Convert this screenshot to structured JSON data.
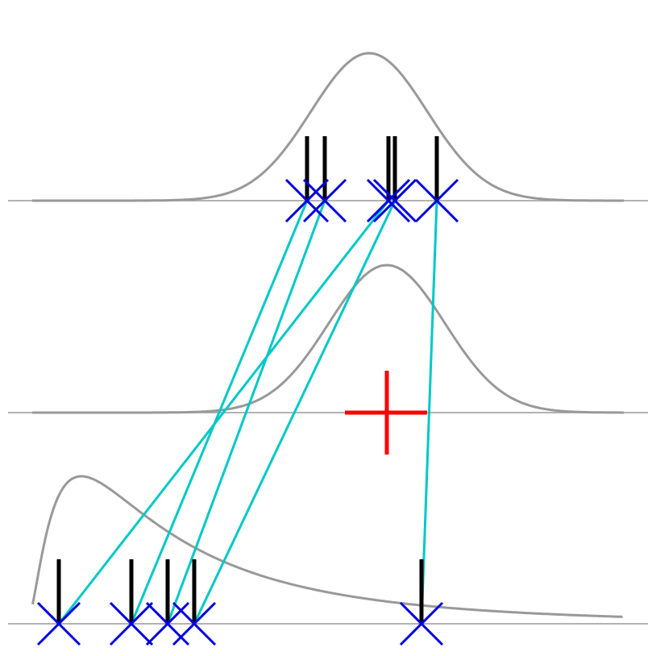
{
  "colors": {
    "background": "#ffffff",
    "baseline": "#999999",
    "density_curve": "#999999",
    "sample_stem": "#000000",
    "sample_marker": "#0000dd",
    "connector": "#00c8c8",
    "mean_marker": "#ff0000"
  },
  "rows": [
    {
      "name": "top",
      "density": {
        "kind": "gaussian",
        "mean": 458,
        "sd": 72,
        "x_start": 40,
        "x_end": 774
      },
      "samples": [
        381,
        403,
        482,
        490,
        542
      ]
    },
    {
      "name": "middle",
      "density": {
        "kind": "gaussian",
        "mean": 480,
        "sd": 72,
        "x_start": 40,
        "x_end": 774
      },
      "samples": [],
      "mean_marker": 480
    },
    {
      "name": "bottom",
      "density": {
        "kind": "lognormal",
        "origin": 40,
        "x_end": 774
      },
      "samples": [
        73,
        163,
        208,
        241,
        523
      ]
    }
  ],
  "connections": [
    {
      "from": 381,
      "to": 163
    },
    {
      "from": 403,
      "to": 208
    },
    {
      "from": 482,
      "to": 73
    },
    {
      "from": 490,
      "to": 241
    },
    {
      "from": 542,
      "to": 523
    }
  ]
}
